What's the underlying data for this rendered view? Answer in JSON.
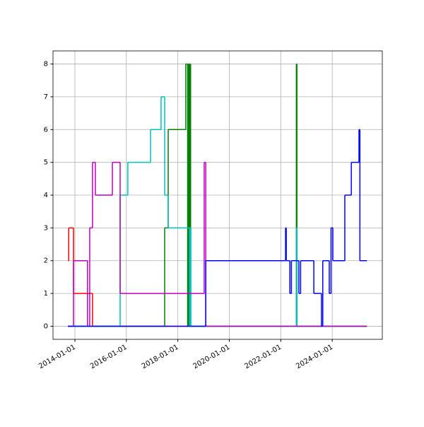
{
  "chart_data": {
    "type": "line",
    "drawstyle": "steps-post",
    "grid": true,
    "xlim": [
      "2013-02-24",
      "2025-12-12"
    ],
    "xticks": [
      "2014-01-01",
      "2016-01-01",
      "2018-01-01",
      "2020-01-01",
      "2022-01-01",
      "2024-01-01"
    ],
    "ylim": [
      -0.4,
      8.4
    ],
    "yticks": [
      0,
      1,
      2,
      3,
      4,
      5,
      6,
      7,
      8
    ],
    "series": [
      {
        "color": "#ff0000",
        "x": [
          "2013-09-24",
          "2013-10-05",
          "2013-12-12",
          "2014-09-08",
          "2025-05-08"
        ],
        "values": [
          2,
          3,
          1,
          0,
          0
        ]
      },
      {
        "color": "#008000",
        "x": [
          "2013-09-24",
          "2017-06-28",
          "2017-08-17",
          "2018-04-24",
          "2018-05-20",
          "2018-06-01",
          "2018-06-12",
          "2018-06-20",
          "2018-07-01",
          "2022-06-01",
          "2022-08-10",
          "2022-08-18",
          "2025-05-08"
        ],
        "values": [
          0,
          3,
          6,
          8,
          0,
          8,
          0,
          8,
          0,
          0,
          8,
          0,
          0
        ]
      },
      {
        "color": "#00bfbf",
        "x": [
          "2013-09-24",
          "2015-10-05",
          "2016-01-22",
          "2016-12-10",
          "2017-05-08",
          "2017-06-28",
          "2017-08-17",
          "2018-06-15",
          "2018-06-25",
          "2018-07-05",
          "2022-08-10",
          "2022-08-18",
          "2025-05-08"
        ],
        "values": [
          0,
          4,
          5,
          6,
          7,
          4,
          3,
          0,
          3,
          0,
          3,
          0,
          0
        ]
      },
      {
        "color": "#bf00bf",
        "x": [
          "2013-09-24",
          "2013-12-12",
          "2014-06-29",
          "2014-07-30",
          "2014-09-08",
          "2014-10-18",
          "2015-06-17",
          "2015-10-05",
          "2019-01-10",
          "2019-02-01",
          "2025-05-08"
        ],
        "values": [
          0,
          2,
          0,
          3,
          5,
          4,
          5,
          1,
          5,
          0,
          0
        ]
      },
      {
        "color": "#0000ff",
        "x": [
          "2013-09-24",
          "2019-02-01",
          "2022-03-10",
          "2022-03-20",
          "2022-05-10",
          "2022-06-01",
          "2022-09-15",
          "2022-10-10",
          "2023-04-15",
          "2023-08-01",
          "2023-08-20",
          "2023-11-20",
          "2023-12-15",
          "2024-01-10",
          "2024-06-28",
          "2024-09-28",
          "2025-01-15",
          "2025-01-28",
          "2025-05-08"
        ],
        "values": [
          0,
          2,
          3,
          2,
          1,
          2,
          1,
          2,
          1,
          0,
          2,
          1,
          3,
          2,
          4,
          5,
          6,
          2,
          2
        ]
      }
    ]
  }
}
